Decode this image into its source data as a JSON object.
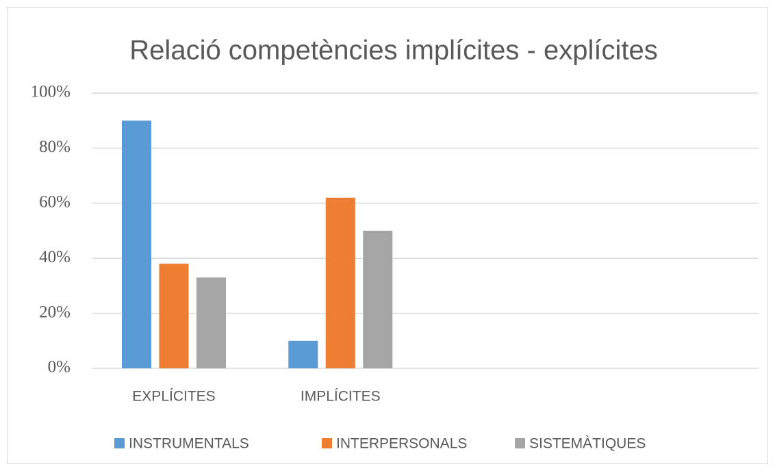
{
  "chart_data": {
    "type": "bar",
    "title": "Relació competències implícites - explícites",
    "categories": [
      "EXPLÍCITES",
      "IMPLÍCITES",
      null,
      null
    ],
    "series": [
      {
        "name": "INSTRUMENTALS",
        "color": "#5b9bd5",
        "values": [
          90,
          10,
          null,
          null
        ]
      },
      {
        "name": "INTERPERSONALS",
        "color": "#ed7d31",
        "values": [
          38,
          62,
          null,
          null
        ]
      },
      {
        "name": "SISTEMÀTIQUES",
        "color": "#a5a5a5",
        "values": [
          33,
          50,
          null,
          null
        ]
      }
    ],
    "ylim": [
      0,
      100
    ],
    "yticks": [
      {
        "value": 0,
        "label": "0%"
      },
      {
        "value": 20,
        "label": "20%"
      },
      {
        "value": 40,
        "label": "40%"
      },
      {
        "value": 60,
        "label": "60%"
      },
      {
        "value": 80,
        "label": "80%"
      },
      {
        "value": 100,
        "label": "100%"
      }
    ],
    "grid": true,
    "legend": "bottom"
  }
}
